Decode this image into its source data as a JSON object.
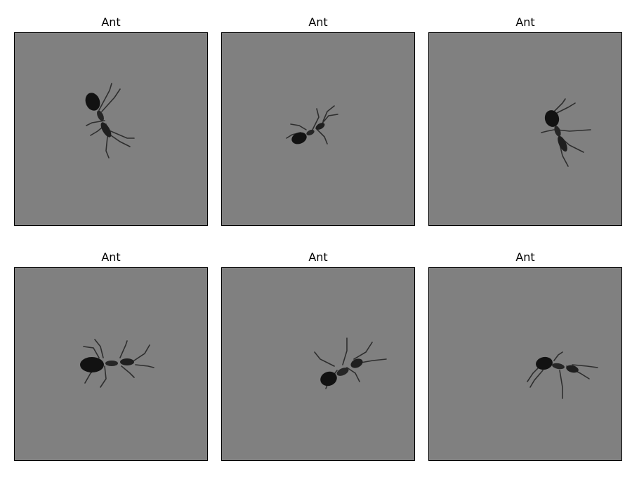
{
  "panels": [
    {
      "title": "Ant",
      "image_icon": "ant-image"
    },
    {
      "title": "Ant",
      "image_icon": "ant-image"
    },
    {
      "title": "Ant",
      "image_icon": "ant-image"
    },
    {
      "title": "Ant",
      "image_icon": "ant-image"
    },
    {
      "title": "Ant",
      "image_icon": "ant-image"
    },
    {
      "title": "Ant",
      "image_icon": "ant-image"
    }
  ],
  "colors": {
    "background": "#808080",
    "ant": "#141414",
    "legs": "#2a2a2a"
  }
}
